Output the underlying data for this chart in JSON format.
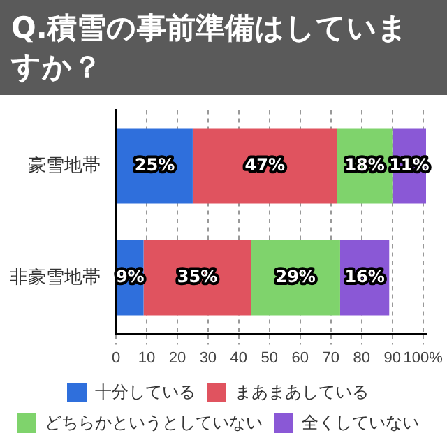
{
  "chart_data": {
    "type": "bar",
    "orientation": "horizontal",
    "stacked": true,
    "title": "Q.積雪の事前準備はしていますか？",
    "categories": [
      "豪雪地帯",
      "非豪雪地帯"
    ],
    "series": [
      {
        "name": "十分している",
        "color": "#2f6fdc",
        "values": [
          25,
          9
        ],
        "value_labels": [
          "25%",
          "9%"
        ]
      },
      {
        "name": "まあまあしている",
        "color": "#e0535f",
        "values": [
          47,
          35
        ],
        "value_labels": [
          "47%",
          "35%"
        ]
      },
      {
        "name": "どちらかというとしていない",
        "color": "#7fd36c",
        "values": [
          18,
          29
        ],
        "value_labels": [
          "18%",
          "29%"
        ]
      },
      {
        "name": "全くしていない",
        "color": "#8a58d6",
        "values": [
          11,
          16
        ],
        "value_labels": [
          "11%",
          "16%"
        ]
      }
    ],
    "xlim": [
      0,
      101
    ],
    "xticks": [
      0,
      10,
      20,
      30,
      40,
      50,
      60,
      70,
      80,
      90,
      {
        "value": 100,
        "label": "100%"
      }
    ],
    "grid": "x",
    "legend": "bottom"
  }
}
